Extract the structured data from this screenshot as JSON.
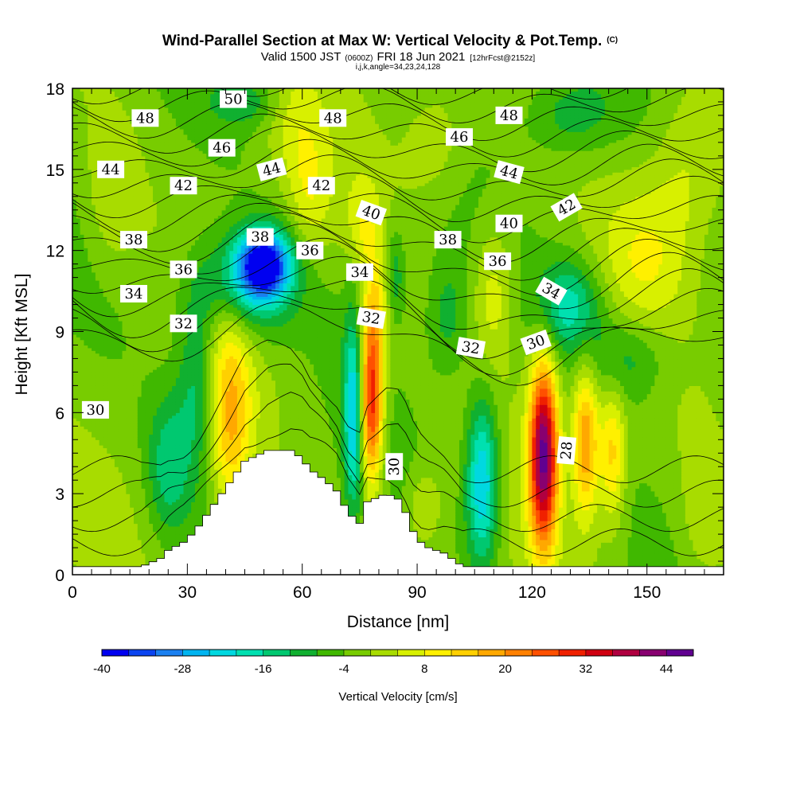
{
  "title": {
    "main": "Wind-Parallel Section at Max W: Vertical Velocity & Pot.Temp.",
    "copyright": "(C)",
    "valid_prefix": "Valid 1500 JST",
    "valid_utc": "(0600Z)",
    "valid_date": "FRI 18 Jun 2021",
    "forecast": "[12hrFcst@2152z]",
    "indices": "i,j,k,angle=34,23,24,128"
  },
  "colors": {
    "background": "#ffffff",
    "palette": [
      "#0000f0",
      "#0a44f0",
      "#1a80f0",
      "#00b4f0",
      "#00d8e0",
      "#00e0b0",
      "#00c870",
      "#10b030",
      "#40b800",
      "#78cc00",
      "#a8dc00",
      "#d8f000",
      "#fff000",
      "#ffd000",
      "#ffa800",
      "#ff8000",
      "#ff5000",
      "#f02000",
      "#d00010",
      "#b00040",
      "#880070",
      "#600090"
    ],
    "terrain": "#ffffff",
    "contour_line": "#000000"
  },
  "chart_data": {
    "type": "heatmap",
    "xlabel": "Distance [nm]",
    "ylabel": "Height [Kft MSL]",
    "xlim": [
      0,
      170
    ],
    "ylim": [
      0,
      18
    ],
    "x_ticks": [
      0,
      30,
      60,
      90,
      120,
      150
    ],
    "x_tick_labels": [
      "0",
      "30",
      "60",
      "90",
      "120",
      "150"
    ],
    "y_ticks": [
      0,
      3,
      6,
      9,
      12,
      15,
      18
    ],
    "y_tick_labels": [
      "0",
      "3",
      "6",
      "9",
      "12",
      "15",
      "18"
    ],
    "colorbar": {
      "title": "Vertical Velocity [cm/s]",
      "min": -40,
      "max": 48,
      "step": 4,
      "tick_values": [
        -40,
        -28,
        -16,
        -4,
        8,
        20,
        32,
        44
      ],
      "tick_labels": [
        "-40",
        "-28",
        "-16",
        "-4",
        "8",
        "20",
        "32",
        "44"
      ]
    },
    "vertical_velocity_features": [
      {
        "x": 50,
        "y": 11.5,
        "value": -36,
        "sx": 5,
        "sy": 0.9
      },
      {
        "x": 44,
        "y": 10.5,
        "value": -16,
        "sx": 9,
        "sy": 1.4
      },
      {
        "x": 33,
        "y": 7.5,
        "value": -14,
        "sx": 4,
        "sy": 2.5
      },
      {
        "x": 25,
        "y": 4.0,
        "value": -12,
        "sx": 4,
        "sy": 1.8
      },
      {
        "x": 41,
        "y": 5.5,
        "value": 18,
        "sx": 4,
        "sy": 2.2
      },
      {
        "x": 39,
        "y": 9.0,
        "value": 8,
        "sx": 6,
        "sy": 1.5
      },
      {
        "x": 73.5,
        "y": 6.0,
        "value": -22,
        "sx": 1.8,
        "sy": 2.6
      },
      {
        "x": 78,
        "y": 6.5,
        "value": 36,
        "sx": 2.2,
        "sy": 2.2
      },
      {
        "x": 80,
        "y": 10.0,
        "value": 10,
        "sx": 3,
        "sy": 1.5
      },
      {
        "x": 84,
        "y": 11.0,
        "value": -12,
        "sx": 2,
        "sy": 1.3
      },
      {
        "x": 76,
        "y": 13.0,
        "value": 8,
        "sx": 3,
        "sy": 1.2
      },
      {
        "x": 107,
        "y": 3.5,
        "value": -24,
        "sx": 3,
        "sy": 2.2
      },
      {
        "x": 98,
        "y": 9.5,
        "value": -8,
        "sx": 4,
        "sy": 1.6
      },
      {
        "x": 110,
        "y": 10.5,
        "value": 10,
        "sx": 4,
        "sy": 2.0
      },
      {
        "x": 123,
        "y": 4.5,
        "value": 46,
        "sx": 2.6,
        "sy": 2.4
      },
      {
        "x": 134,
        "y": 5.0,
        "value": 22,
        "sx": 2.4,
        "sy": 2.0
      },
      {
        "x": 141,
        "y": 4.5,
        "value": 16,
        "sx": 2.4,
        "sy": 1.8
      },
      {
        "x": 130,
        "y": 10.0,
        "value": -16,
        "sx": 6,
        "sy": 1.2
      },
      {
        "x": 145,
        "y": 8.0,
        "value": -10,
        "sx": 8,
        "sy": 1.2
      },
      {
        "x": 150,
        "y": 12.0,
        "value": 8,
        "sx": 8,
        "sy": 2.0
      },
      {
        "x": 160,
        "y": 15.0,
        "value": 6,
        "sx": 6,
        "sy": 2.0
      },
      {
        "x": 62,
        "y": 14.0,
        "value": 8,
        "sx": 4,
        "sy": 1.5
      },
      {
        "x": 58,
        "y": 16.5,
        "value": 6,
        "sx": 5,
        "sy": 1.5
      },
      {
        "x": 45,
        "y": 17.5,
        "value": -8,
        "sx": 6,
        "sy": 0.6
      },
      {
        "x": 95,
        "y": 16.0,
        "value": 6,
        "sx": 6,
        "sy": 1.5
      },
      {
        "x": 130,
        "y": 17.0,
        "value": -8,
        "sx": 8,
        "sy": 1.0
      },
      {
        "x": 10,
        "y": 14.0,
        "value": 6,
        "sx": 5,
        "sy": 2.0
      },
      {
        "x": 165,
        "y": 2.0,
        "value": 6,
        "sx": 5,
        "sy": 2.0
      },
      {
        "x": 92,
        "y": 2.5,
        "value": 8,
        "sx": 3,
        "sy": 1.0
      }
    ],
    "terrain_profile": {
      "x": [
        0,
        18,
        23,
        25,
        29,
        32,
        34,
        36,
        38,
        40,
        42,
        45,
        51,
        57,
        60,
        62,
        66,
        69,
        72,
        75,
        77,
        82,
        85,
        87,
        89,
        91,
        93,
        97,
        100,
        102,
        170
      ],
      "height": [
        0.3,
        0.3,
        0.6,
        0.9,
        1.2,
        1.6,
        2.0,
        2.4,
        2.8,
        3.2,
        3.6,
        4.2,
        4.6,
        4.6,
        4.3,
        3.9,
        3.5,
        3.1,
        2.3,
        1.9,
        2.7,
        3.0,
        2.8,
        2.3,
        1.6,
        1.2,
        1.0,
        0.8,
        0.5,
        0.3,
        0.3
      ]
    },
    "potential_temperature_contours": {
      "labels": [
        {
          "text": "50",
          "x": 42,
          "y": 17.6,
          "angle": 0
        },
        {
          "text": "48",
          "x": 19,
          "y": 16.9,
          "angle": 0
        },
        {
          "text": "48",
          "x": 68,
          "y": 16.9,
          "angle": 0
        },
        {
          "text": "48",
          "x": 114,
          "y": 17.0,
          "angle": 0
        },
        {
          "text": "46",
          "x": 39,
          "y": 15.8,
          "angle": 0
        },
        {
          "text": "46",
          "x": 101,
          "y": 16.2,
          "angle": 0
        },
        {
          "text": "44",
          "x": 10,
          "y": 15.0,
          "angle": 0
        },
        {
          "text": "44",
          "x": 52,
          "y": 15.0,
          "angle": -15
        },
        {
          "text": "44",
          "x": 114,
          "y": 14.9,
          "angle": 15
        },
        {
          "text": "42",
          "x": 29,
          "y": 14.4,
          "angle": 0
        },
        {
          "text": "42",
          "x": 65,
          "y": 14.4,
          "angle": 0
        },
        {
          "text": "42",
          "x": 129,
          "y": 13.6,
          "angle": -30
        },
        {
          "text": "40",
          "x": 78,
          "y": 13.4,
          "angle": 20
        },
        {
          "text": "40",
          "x": 114,
          "y": 13.0,
          "angle": 0
        },
        {
          "text": "38",
          "x": 16,
          "y": 12.4,
          "angle": 0
        },
        {
          "text": "38",
          "x": 49,
          "y": 12.5,
          "angle": 0
        },
        {
          "text": "38",
          "x": 98,
          "y": 12.4,
          "angle": 0
        },
        {
          "text": "36",
          "x": 29,
          "y": 11.3,
          "angle": 0
        },
        {
          "text": "36",
          "x": 62,
          "y": 12.0,
          "angle": 0
        },
        {
          "text": "36",
          "x": 111,
          "y": 11.6,
          "angle": 0
        },
        {
          "text": "34",
          "x": 16,
          "y": 10.4,
          "angle": 0
        },
        {
          "text": "34",
          "x": 75,
          "y": 11.2,
          "angle": 0
        },
        {
          "text": "34",
          "x": 125,
          "y": 10.5,
          "angle": 30
        },
        {
          "text": "32",
          "x": 29,
          "y": 9.3,
          "angle": 0
        },
        {
          "text": "32",
          "x": 78,
          "y": 9.5,
          "angle": 10
        },
        {
          "text": "32",
          "x": 104,
          "y": 8.4,
          "angle": 10
        },
        {
          "text": "30",
          "x": 6,
          "y": 6.1,
          "angle": 0
        },
        {
          "text": "30",
          "x": 84,
          "y": 4.0,
          "angle": -90
        },
        {
          "text": "30",
          "x": 121,
          "y": 8.6,
          "angle": -20
        },
        {
          "text": "28",
          "x": 129,
          "y": 4.6,
          "angle": -85
        }
      ]
    }
  }
}
